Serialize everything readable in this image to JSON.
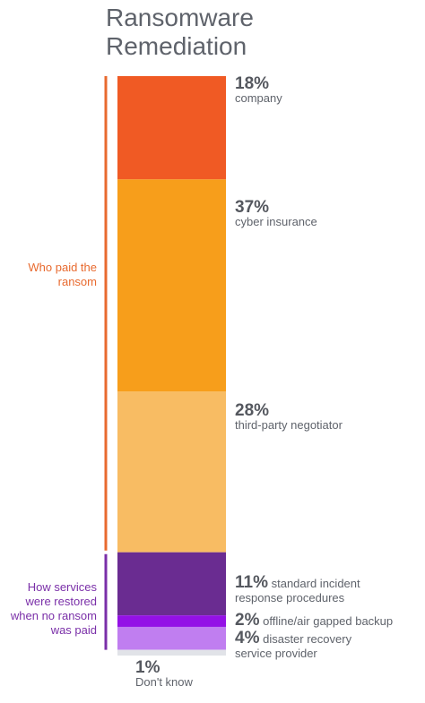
{
  "title_line1": "Ransomware",
  "title_line2": "Remediation",
  "groups": {
    "paid": {
      "line1": "Who paid the",
      "line2": "ransom",
      "color": "#e86a2f"
    },
    "restored": {
      "line1": "How services",
      "line2": "were restored",
      "line3": "when no ransom",
      "line4": "was paid",
      "color": "#7a2fa8"
    }
  },
  "chart_data": {
    "type": "bar",
    "stacked": true,
    "title": "Ransomware Remediation",
    "unit": "%",
    "segments": [
      {
        "percent": "18%",
        "value": 18,
        "label": "company",
        "group": "Who paid the ransom",
        "color": "#f05a24"
      },
      {
        "percent": "37%",
        "value": 37,
        "label": "cyber insurance",
        "group": "Who paid the ransom",
        "color": "#f79e1b"
      },
      {
        "percent": "28%",
        "value": 28,
        "label": "third-party negotiator",
        "group": "Who paid the ransom",
        "color": "#f8bc63"
      },
      {
        "percent": "11%",
        "value": 11,
        "label": "standard incident",
        "label2": "response procedures",
        "group": "How services were restored when no ransom was paid",
        "color": "#6a2c91"
      },
      {
        "percent": "2%",
        "value": 2,
        "label": "offline/air gapped backup",
        "group": "How services were restored when no ransom was paid",
        "color": "#9410e6"
      },
      {
        "percent": "4%",
        "value": 4,
        "label": "disaster recovery",
        "label2": "service provider",
        "group": "How services were restored when no ransom was paid",
        "color": "#c07ef0"
      },
      {
        "percent": "1%",
        "value": 1,
        "label": "Don't know",
        "group": "",
        "color": "#e1e3e8"
      }
    ]
  }
}
